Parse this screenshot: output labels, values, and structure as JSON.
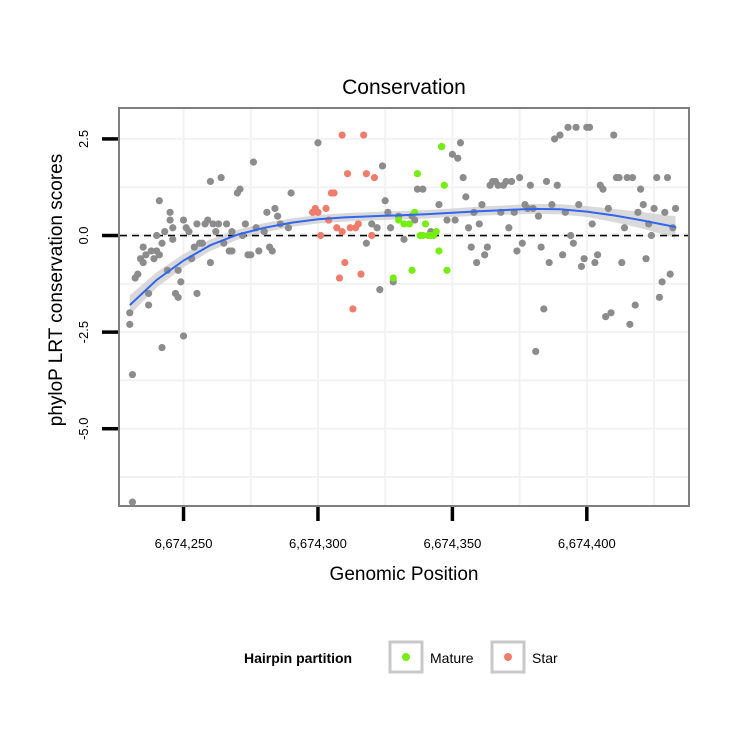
{
  "chart_data": {
    "type": "scatter",
    "title": "Conservation",
    "xlabel": "Genomic Position",
    "ylabel": "phyloP LRT conservation scores",
    "xlim": [
      6674226,
      6674438
    ],
    "ylim": [
      -7.0,
      3.3
    ],
    "x_ticks": [
      {
        "value": 6674250,
        "label": "6,674,250"
      },
      {
        "value": 6674300,
        "label": "6,674,300"
      },
      {
        "value": 6674350,
        "label": "6,674,350"
      },
      {
        "value": 6674400,
        "label": "6,674,400"
      }
    ],
    "y_ticks": [
      {
        "value": 2.5,
        "label": "2.5"
      },
      {
        "value": 0.0,
        "label": "0.0"
      },
      {
        "value": -2.5,
        "label": "-2.5"
      },
      {
        "value": -5.0,
        "label": "-5.0"
      }
    ],
    "reference_line": {
      "y": 0.0,
      "style": "dashed"
    },
    "grid": true,
    "legend": {
      "title": "Hairpin partition",
      "placement": "bottom",
      "entries": [
        {
          "label": "Mature",
          "color": "#77ee11"
        },
        {
          "label": "Star",
          "color": "#f07c6c"
        }
      ]
    },
    "colors": {
      "other": "#8c8c8c",
      "mature": "#77ee11",
      "star": "#f07c6c",
      "smooth": "#3366ee",
      "ribbon": "#cccccc"
    },
    "smooth": {
      "x": [
        6674230,
        6674240,
        6674250,
        6674260,
        6674270,
        6674280,
        6674290,
        6674300,
        6674310,
        6674320,
        6674330,
        6674340,
        6674350,
        6674360,
        6674370,
        6674380,
        6674390,
        6674400,
        6674410,
        6674420,
        6674433
      ],
      "y": [
        -1.8,
        -1.15,
        -0.65,
        -0.25,
        0.02,
        0.2,
        0.33,
        0.42,
        0.47,
        0.5,
        0.52,
        0.55,
        0.59,
        0.63,
        0.66,
        0.69,
        0.68,
        0.62,
        0.52,
        0.4,
        0.22
      ],
      "se": [
        0.25,
        0.2,
        0.17,
        0.15,
        0.13,
        0.12,
        0.11,
        0.11,
        0.11,
        0.11,
        0.11,
        0.11,
        0.11,
        0.12,
        0.12,
        0.13,
        0.13,
        0.14,
        0.17,
        0.21,
        0.28
      ]
    },
    "series": [
      {
        "name": "Other",
        "points": [
          [
            6674230,
            -2.3
          ],
          [
            6674230,
            -2.0
          ],
          [
            6674231,
            -3.6
          ],
          [
            6674231,
            -6.9
          ],
          [
            6674232,
            -1.1
          ],
          [
            6674233,
            -1.0
          ],
          [
            6674234,
            -0.6
          ],
          [
            6674235,
            -0.7
          ],
          [
            6674235,
            -0.3
          ],
          [
            6674236,
            -0.5
          ],
          [
            6674237,
            -1.5
          ],
          [
            6674237,
            -1.8
          ],
          [
            6674238,
            -0.4
          ],
          [
            6674239,
            -0.6
          ],
          [
            6674240,
            0.0
          ],
          [
            6674240,
            -0.4
          ],
          [
            6674241,
            -0.5
          ],
          [
            6674241,
            0.9
          ],
          [
            6674242,
            -2.9
          ],
          [
            6674242,
            -0.2
          ],
          [
            6674243,
            0.1
          ],
          [
            6674244,
            -0.9
          ],
          [
            6674245,
            0.4
          ],
          [
            6674245,
            0.6
          ],
          [
            6674246,
            0.2
          ],
          [
            6674246,
            -0.1
          ],
          [
            6674247,
            -1.5
          ],
          [
            6674248,
            -1.6
          ],
          [
            6674248,
            -0.9
          ],
          [
            6674249,
            -1.2
          ],
          [
            6674250,
            -2.6
          ],
          [
            6674250,
            0.4
          ],
          [
            6674251,
            0.2
          ],
          [
            6674252,
            0.1
          ],
          [
            6674253,
            -0.6
          ],
          [
            6674254,
            -0.3
          ],
          [
            6674255,
            -1.5
          ],
          [
            6674255,
            0.3
          ],
          [
            6674256,
            -0.2
          ],
          [
            6674257,
            -0.2
          ],
          [
            6674258,
            0.3
          ],
          [
            6674259,
            0.4
          ],
          [
            6674260,
            1.4
          ],
          [
            6674260,
            -0.7
          ],
          [
            6674261,
            0.3
          ],
          [
            6674262,
            0.1
          ],
          [
            6674263,
            0.3
          ],
          [
            6674264,
            1.5
          ],
          [
            6674265,
            -0.2
          ],
          [
            6674266,
            0.3
          ],
          [
            6674267,
            -0.4
          ],
          [
            6674268,
            0.1
          ],
          [
            6674268,
            -0.4
          ],
          [
            6674270,
            1.1
          ],
          [
            6674271,
            1.2
          ],
          [
            6674272,
            0.0
          ],
          [
            6674273,
            0.3
          ],
          [
            6674274,
            -0.5
          ],
          [
            6674275,
            -0.5
          ],
          [
            6674276,
            1.9
          ],
          [
            6674277,
            0.2
          ],
          [
            6674278,
            -0.4
          ],
          [
            6674280,
            0.1
          ],
          [
            6674281,
            0.6
          ],
          [
            6674282,
            -0.3
          ],
          [
            6674283,
            -0.4
          ],
          [
            6674284,
            0.7
          ],
          [
            6674285,
            0.5
          ],
          [
            6674286,
            0.3
          ],
          [
            6674289,
            0.2
          ],
          [
            6674290,
            1.1
          ],
          [
            6674300,
            2.4
          ],
          [
            6674318,
            -0.2
          ],
          [
            6674320,
            0.3
          ],
          [
            6674322,
            0.2
          ],
          [
            6674323,
            -1.4
          ],
          [
            6674324,
            1.8
          ],
          [
            6674325,
            0.9
          ],
          [
            6674326,
            0.6
          ],
          [
            6674327,
            0.2
          ],
          [
            6674328,
            -1.2
          ],
          [
            6674330,
            0.5
          ],
          [
            6674332,
            -0.1
          ],
          [
            6674335,
            0.5
          ],
          [
            6674336,
            0.4
          ],
          [
            6674337,
            1.2
          ],
          [
            6674339,
            1.2
          ],
          [
            6674342,
            0.1
          ],
          [
            6674345,
            0.8
          ],
          [
            6674346,
            2.3
          ],
          [
            6674348,
            0.4
          ],
          [
            6674350,
            2.1
          ],
          [
            6674351,
            0.4
          ],
          [
            6674352,
            2.0
          ],
          [
            6674353,
            2.4
          ],
          [
            6674354,
            1.5
          ],
          [
            6674355,
            1.0
          ],
          [
            6674356,
            0.2
          ],
          [
            6674357,
            -0.3
          ],
          [
            6674358,
            0.6
          ],
          [
            6674359,
            -0.7
          ],
          [
            6674360,
            0.3
          ],
          [
            6674361,
            0.8
          ],
          [
            6674362,
            -0.5
          ],
          [
            6674363,
            -0.3
          ],
          [
            6674364,
            1.3
          ],
          [
            6674365,
            1.4
          ],
          [
            6674366,
            1.4
          ],
          [
            6674367,
            1.3
          ],
          [
            6674368,
            0.6
          ],
          [
            6674369,
            1.3
          ],
          [
            6674370,
            1.4
          ],
          [
            6674371,
            0.2
          ],
          [
            6674372,
            1.4
          ],
          [
            6674373,
            0.6
          ],
          [
            6674374,
            -0.4
          ],
          [
            6674375,
            1.5
          ],
          [
            6674376,
            -0.2
          ],
          [
            6674377,
            0.8
          ],
          [
            6674378,
            0.7
          ],
          [
            6674379,
            1.3
          ],
          [
            6674380,
            0.7
          ],
          [
            6674381,
            -3.0
          ],
          [
            6674382,
            0.5
          ],
          [
            6674383,
            -0.3
          ],
          [
            6674384,
            -1.9
          ],
          [
            6674385,
            1.4
          ],
          [
            6674386,
            -0.7
          ],
          [
            6674387,
            0.8
          ],
          [
            6674388,
            2.5
          ],
          [
            6674389,
            1.3
          ],
          [
            6674390,
            2.6
          ],
          [
            6674391,
            -0.5
          ],
          [
            6674392,
            0.6
          ],
          [
            6674393,
            2.8
          ],
          [
            6674394,
            0.0
          ],
          [
            6674395,
            -0.2
          ],
          [
            6674396,
            2.8
          ],
          [
            6674397,
            0.8
          ],
          [
            6674398,
            -0.8
          ],
          [
            6674399,
            -0.6
          ],
          [
            6674400,
            2.8
          ],
          [
            6674401,
            2.8
          ],
          [
            6674402,
            0.3
          ],
          [
            6674403,
            -0.7
          ],
          [
            6674404,
            -0.5
          ],
          [
            6674405,
            1.3
          ],
          [
            6674406,
            1.2
          ],
          [
            6674407,
            -2.1
          ],
          [
            6674408,
            0.7
          ],
          [
            6674409,
            -2.0
          ],
          [
            6674410,
            2.6
          ],
          [
            6674411,
            1.5
          ],
          [
            6674412,
            1.5
          ],
          [
            6674413,
            -0.7
          ],
          [
            6674414,
            0.2
          ],
          [
            6674415,
            1.5
          ],
          [
            6674416,
            -2.3
          ],
          [
            6674417,
            1.5
          ],
          [
            6674418,
            -1.8
          ],
          [
            6674419,
            0.6
          ],
          [
            6674420,
            1.2
          ],
          [
            6674421,
            0.8
          ],
          [
            6674422,
            -0.6
          ],
          [
            6674423,
            0.3
          ],
          [
            6674424,
            0.0
          ],
          [
            6674425,
            0.7
          ],
          [
            6674426,
            1.5
          ],
          [
            6674427,
            -1.6
          ],
          [
            6674428,
            -1.2
          ],
          [
            6674429,
            0.6
          ],
          [
            6674430,
            1.5
          ],
          [
            6674431,
            -1.0
          ],
          [
            6674432,
            0.2
          ],
          [
            6674433,
            0.7
          ]
        ]
      },
      {
        "name": "Star",
        "points": [
          [
            6674298,
            0.6
          ],
          [
            6674299,
            0.7
          ],
          [
            6674300,
            0.6
          ],
          [
            6674301,
            0.0
          ],
          [
            6674303,
            0.7
          ],
          [
            6674304,
            0.4
          ],
          [
            6674305,
            1.1
          ],
          [
            6674306,
            1.1
          ],
          [
            6674307,
            0.2
          ],
          [
            6674308,
            -1.1
          ],
          [
            6674309,
            2.6
          ],
          [
            6674309,
            0.1
          ],
          [
            6674310,
            -0.7
          ],
          [
            6674311,
            1.6
          ],
          [
            6674312,
            0.2
          ],
          [
            6674313,
            -1.9
          ],
          [
            6674314,
            0.2
          ],
          [
            6674315,
            0.3
          ],
          [
            6674316,
            -1.0
          ],
          [
            6674317,
            2.6
          ],
          [
            6674318,
            1.6
          ],
          [
            6674320,
            0.0
          ],
          [
            6674321,
            1.5
          ]
        ]
      },
      {
        "name": "Mature",
        "points": [
          [
            6674328,
            -1.1
          ],
          [
            6674330,
            0.4
          ],
          [
            6674332,
            0.3
          ],
          [
            6674334,
            0.3
          ],
          [
            6674335,
            -0.9
          ],
          [
            6674336,
            0.6
          ],
          [
            6674337,
            1.6
          ],
          [
            6674338,
            0.0
          ],
          [
            6674339,
            0.0
          ],
          [
            6674340,
            0.3
          ],
          [
            6674341,
            0.0
          ],
          [
            6674342,
            0.0
          ],
          [
            6674343,
            0.0
          ],
          [
            6674344,
            0.1
          ],
          [
            6674345,
            -0.4
          ],
          [
            6674346,
            2.3
          ],
          [
            6674347,
            1.3
          ],
          [
            6674348,
            -0.9
          ]
        ]
      }
    ]
  }
}
